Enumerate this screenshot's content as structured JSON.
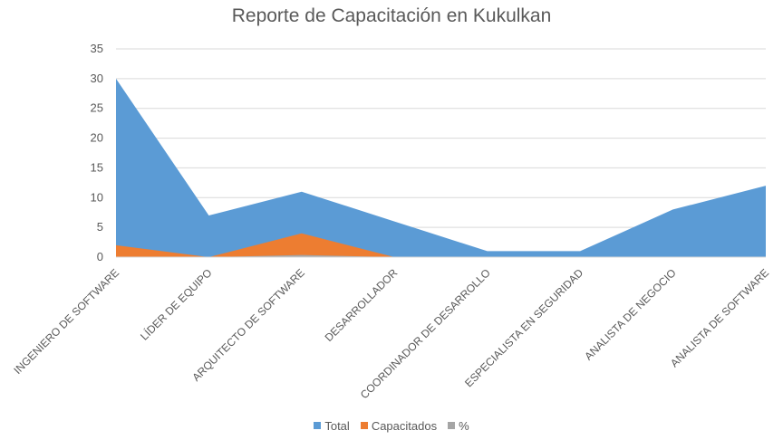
{
  "chart_data": {
    "type": "area",
    "title": "Reporte de Capacitación en Kukulkan",
    "xlabel": "",
    "ylabel": "",
    "ylim": [
      0,
      35
    ],
    "yticks": [
      0,
      5,
      10,
      15,
      20,
      25,
      30,
      35
    ],
    "grid": true,
    "legend_position": "bottom",
    "categories": [
      "INGENIERO DE SOFTWARE",
      "LÍDER DE EQUIPO",
      "ARQUITECTO DE SOFTWARE",
      "DESARROLLADOR",
      "COORDINADOR DE DESARROLLO",
      "ESPECIALISTA EN SEGURIDAD",
      "ANALISTA DE NEGOCIO",
      "ANALISTA DE SOFTWARE"
    ],
    "series": [
      {
        "name": "Total",
        "color": "#5B9BD5",
        "values": [
          30,
          7,
          11,
          6,
          1,
          1,
          8,
          12
        ]
      },
      {
        "name": "Capacitados",
        "color": "#ED7D31",
        "values": [
          2,
          0,
          4,
          0,
          0,
          0,
          0,
          0
        ]
      },
      {
        "name": "%",
        "color": "#A5A5A5",
        "values": [
          0.07,
          0,
          0.36,
          0,
          0,
          0,
          0,
          0
        ]
      }
    ]
  }
}
